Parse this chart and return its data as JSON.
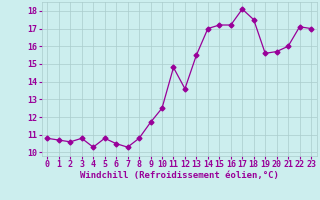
{
  "x": [
    0,
    1,
    2,
    3,
    4,
    5,
    6,
    7,
    8,
    9,
    10,
    11,
    12,
    13,
    14,
    15,
    16,
    17,
    18,
    19,
    20,
    21,
    22,
    23
  ],
  "y": [
    10.8,
    10.7,
    10.6,
    10.8,
    10.3,
    10.8,
    10.5,
    10.3,
    10.8,
    11.7,
    12.5,
    14.8,
    13.6,
    15.5,
    17.0,
    17.2,
    17.2,
    18.1,
    17.5,
    15.6,
    15.7,
    16.0,
    17.1,
    17.0
  ],
  "line_color": "#990099",
  "marker": "D",
  "markersize": 2.5,
  "linewidth": 0.9,
  "background_color": "#cceeee",
  "grid_color": "#aacccc",
  "xlabel": "Windchill (Refroidissement éolien,°C)",
  "xlabel_fontsize": 6.5,
  "tick_fontsize": 6.0,
  "ylim": [
    9.8,
    18.5
  ],
  "xlim": [
    -0.5,
    23.5
  ],
  "yticks": [
    10,
    11,
    12,
    13,
    14,
    15,
    16,
    17,
    18
  ],
  "xticks": [
    0,
    1,
    2,
    3,
    4,
    5,
    6,
    7,
    8,
    9,
    10,
    11,
    12,
    13,
    14,
    15,
    16,
    17,
    18,
    19,
    20,
    21,
    22,
    23
  ]
}
